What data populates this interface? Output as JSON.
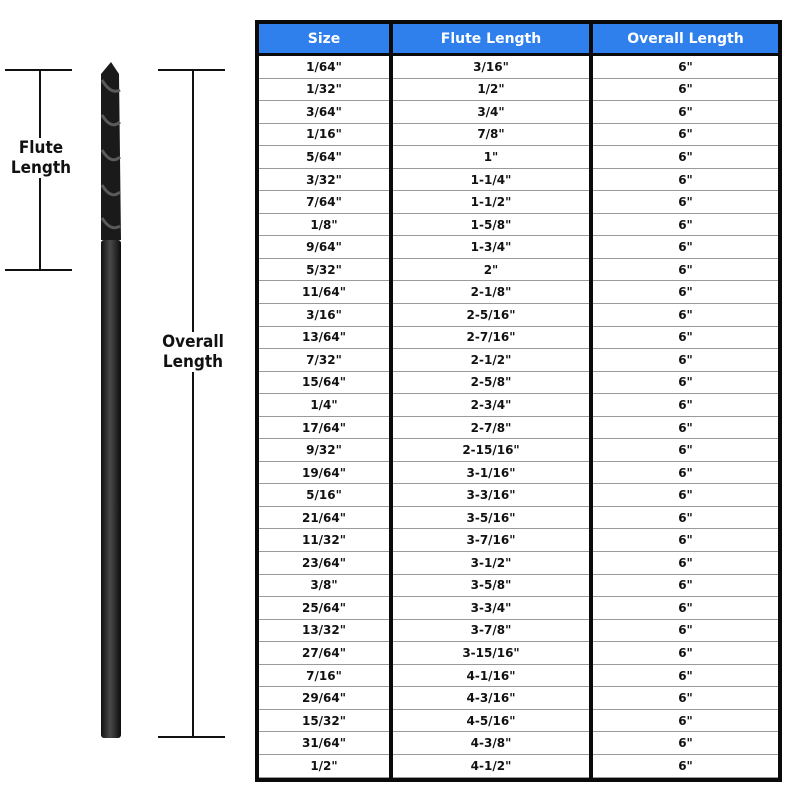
{
  "diagram": {
    "flute_label": "Flute Length",
    "overall_label": "Overall Length"
  },
  "table": {
    "headers": [
      "Size",
      "Flute Length",
      "Overall Length"
    ],
    "header_color": "#2f80ed",
    "rows": [
      [
        "1/64\"",
        "3/16\"",
        "6\""
      ],
      [
        "1/32\"",
        "1/2\"",
        "6\""
      ],
      [
        "3/64\"",
        "3/4\"",
        "6\""
      ],
      [
        "1/16\"",
        "7/8\"",
        "6\""
      ],
      [
        "5/64\"",
        "1\"",
        "6\""
      ],
      [
        "3/32\"",
        "1-1/4\"",
        "6\""
      ],
      [
        "7/64\"",
        "1-1/2\"",
        "6\""
      ],
      [
        "1/8\"",
        "1-5/8\"",
        "6\""
      ],
      [
        "9/64\"",
        "1-3/4\"",
        "6\""
      ],
      [
        "5/32\"",
        "2\"",
        "6\""
      ],
      [
        "11/64\"",
        "2-1/8\"",
        "6\""
      ],
      [
        "3/16\"",
        "2-5/16\"",
        "6\""
      ],
      [
        "13/64\"",
        "2-7/16\"",
        "6\""
      ],
      [
        "7/32\"",
        "2-1/2\"",
        "6\""
      ],
      [
        "15/64\"",
        "2-5/8\"",
        "6\""
      ],
      [
        "1/4\"",
        "2-3/4\"",
        "6\""
      ],
      [
        "17/64\"",
        "2-7/8\"",
        "6\""
      ],
      [
        "9/32\"",
        "2-15/16\"",
        "6\""
      ],
      [
        "19/64\"",
        "3-1/16\"",
        "6\""
      ],
      [
        "5/16\"",
        "3-3/16\"",
        "6\""
      ],
      [
        "21/64\"",
        "3-5/16\"",
        "6\""
      ],
      [
        "11/32\"",
        "3-7/16\"",
        "6\""
      ],
      [
        "23/64\"",
        "3-1/2\"",
        "6\""
      ],
      [
        "3/8\"",
        "3-5/8\"",
        "6\""
      ],
      [
        "25/64\"",
        "3-3/4\"",
        "6\""
      ],
      [
        "13/32\"",
        "3-7/8\"",
        "6\""
      ],
      [
        "27/64\"",
        "3-15/16\"",
        "6\""
      ],
      [
        "7/16\"",
        "4-1/16\"",
        "6\""
      ],
      [
        "29/64\"",
        "4-3/16\"",
        "6\""
      ],
      [
        "15/32\"",
        "4-5/16\"",
        "6\""
      ],
      [
        "31/64\"",
        "4-3/8\"",
        "6\""
      ],
      [
        "1/2\"",
        "4-1/2\"",
        "6\""
      ]
    ]
  }
}
